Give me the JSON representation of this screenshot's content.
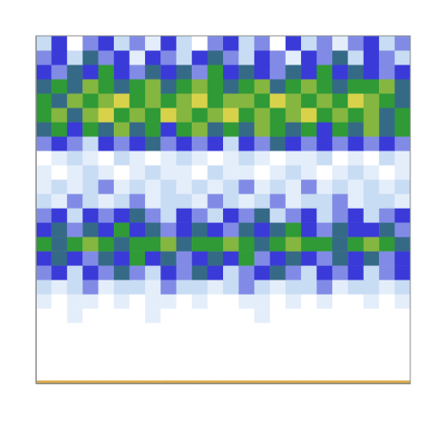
{
  "chart_data": {
    "type": "heatmap",
    "xlim": [
      0,
      24
    ],
    "ylim": [
      0,
      100
    ],
    "zlim": [
      0,
      10
    ],
    "tick_labels": false,
    "x_bins": [
      0,
      1,
      2,
      3,
      4,
      5,
      6,
      7,
      8,
      9,
      10,
      11,
      12,
      13,
      14,
      15,
      16,
      17,
      18,
      19,
      20,
      21,
      22,
      23,
      24
    ],
    "y_bins": [
      0,
      1,
      5.125,
      9.25,
      13.375,
      17.5,
      21.625,
      25.75,
      29.875,
      34,
      38.125,
      42.25,
      46.375,
      50.5,
      54.625,
      58.75,
      62.875,
      67,
      71.125,
      75.25,
      79.375,
      83.5,
      87.625,
      91.75,
      95.875,
      100
    ],
    "cells": [
      [
        9,
        9,
        9,
        9,
        9,
        9,
        9,
        9,
        9,
        9,
        9,
        9,
        9,
        9,
        9,
        9,
        9,
        9,
        9,
        9,
        9,
        9,
        9,
        9
      ],
      [
        0,
        0,
        0,
        0,
        0,
        0,
        0,
        0,
        0,
        0,
        0,
        0,
        0,
        0,
        0,
        0,
        0,
        0,
        0,
        0,
        0,
        0,
        0,
        0
      ],
      [
        0,
        0,
        0,
        0,
        0,
        0,
        0,
        0,
        0,
        0,
        0,
        0,
        0,
        0,
        0,
        0,
        0,
        0,
        0,
        0,
        0,
        0,
        0,
        0
      ],
      [
        0,
        0,
        0,
        0,
        0,
        0,
        0,
        0,
        0,
        0,
        0,
        0,
        0,
        0,
        0,
        0,
        0,
        0,
        0,
        0,
        0,
        0,
        0,
        0
      ],
      [
        0,
        0,
        0,
        0,
        0,
        0,
        0,
        0,
        0,
        0,
        0,
        0,
        0,
        0,
        0,
        0,
        0,
        0,
        0,
        0,
        0,
        0,
        0,
        0
      ],
      [
        0,
        0,
        1,
        0,
        0,
        0,
        0,
        1,
        0,
        0,
        0,
        0,
        0,
        0,
        1,
        0,
        0,
        0,
        0,
        0,
        0,
        0,
        0,
        0
      ],
      [
        1,
        0,
        1,
        1,
        0,
        1,
        0,
        1,
        1,
        0,
        1,
        0,
        0,
        1,
        1,
        0,
        1,
        0,
        1,
        0,
        0,
        1,
        0,
        1
      ],
      [
        2,
        1,
        2,
        3,
        1,
        2,
        2,
        1,
        3,
        2,
        2,
        1,
        2,
        3,
        2,
        1,
        2,
        2,
        3,
        1,
        2,
        2,
        1,
        2
      ],
      [
        3,
        4,
        2,
        4,
        3,
        5,
        3,
        2,
        4,
        3,
        5,
        4,
        2,
        3,
        4,
        5,
        3,
        2,
        4,
        3,
        4,
        2,
        3,
        4
      ],
      [
        4,
        5,
        4,
        3,
        5,
        4,
        6,
        4,
        5,
        3,
        4,
        5,
        4,
        6,
        3,
        4,
        5,
        4,
        3,
        5,
        4,
        5,
        3,
        4
      ],
      [
        6,
        5,
        6,
        7,
        6,
        5,
        6,
        6,
        7,
        5,
        6,
        6,
        7,
        6,
        5,
        6,
        7,
        6,
        6,
        5,
        6,
        7,
        6,
        5
      ],
      [
        4,
        5,
        3,
        5,
        4,
        6,
        4,
        5,
        3,
        4,
        5,
        4,
        3,
        5,
        4,
        5,
        6,
        4,
        3,
        5,
        4,
        4,
        5,
        3
      ],
      [
        3,
        4,
        2,
        4,
        3,
        4,
        5,
        3,
        2,
        4,
        3,
        2,
        4,
        3,
        5,
        2,
        3,
        4,
        2,
        3,
        4,
        2,
        3,
        4
      ],
      [
        2,
        1,
        3,
        2,
        1,
        2,
        3,
        1,
        2,
        2,
        1,
        3,
        2,
        1,
        2,
        3,
        1,
        2,
        2,
        3,
        1,
        2,
        2,
        1
      ],
      [
        1,
        2,
        1,
        2,
        3,
        1,
        2,
        1,
        2,
        1,
        2,
        1,
        2,
        3,
        1,
        2,
        1,
        3,
        1,
        2,
        1,
        2,
        1,
        2
      ],
      [
        1,
        0,
        1,
        2,
        1,
        0,
        1,
        2,
        1,
        1,
        0,
        2,
        1,
        1,
        0,
        1,
        2,
        1,
        0,
        1,
        2,
        1,
        0,
        1
      ],
      [
        0,
        1,
        2,
        1,
        0,
        2,
        1,
        0,
        1,
        2,
        1,
        0,
        1,
        2,
        1,
        0,
        1,
        1,
        2,
        0,
        1,
        0,
        2,
        1
      ],
      [
        3,
        4,
        3,
        2,
        4,
        3,
        4,
        5,
        3,
        4,
        3,
        4,
        2,
        4,
        3,
        5,
        4,
        3,
        4,
        3,
        4,
        3,
        4,
        3
      ],
      [
        5,
        6,
        4,
        6,
        5,
        7,
        5,
        6,
        4,
        6,
        7,
        5,
        6,
        5,
        7,
        6,
        5,
        6,
        4,
        6,
        5,
        7,
        5,
        6
      ],
      [
        6,
        7,
        5,
        7,
        8,
        6,
        7,
        6,
        8,
        7,
        6,
        7,
        8,
        6,
        7,
        6,
        7,
        8,
        6,
        7,
        6,
        7,
        5,
        6
      ],
      [
        6,
        5,
        7,
        6,
        7,
        8,
        6,
        7,
        6,
        7,
        8,
        6,
        7,
        7,
        6,
        8,
        7,
        6,
        7,
        6,
        8,
        7,
        6,
        5
      ],
      [
        5,
        6,
        5,
        7,
        6,
        5,
        6,
        7,
        5,
        6,
        7,
        6,
        5,
        6,
        7,
        5,
        6,
        7,
        6,
        5,
        6,
        6,
        7,
        5
      ],
      [
        4,
        3,
        5,
        4,
        6,
        4,
        3,
        5,
        4,
        5,
        3,
        6,
        4,
        5,
        4,
        3,
        5,
        4,
        6,
        4,
        5,
        4,
        3,
        4
      ],
      [
        3,
        4,
        2,
        5,
        3,
        4,
        1,
        4,
        3,
        2,
        4,
        5,
        3,
        2,
        4,
        3,
        1,
        4,
        3,
        5,
        2,
        4,
        3,
        2
      ],
      [
        2,
        4,
        0,
        3,
        4,
        2,
        3,
        1,
        4,
        2,
        0,
        3,
        4,
        2,
        3,
        0,
        4,
        2,
        3,
        1,
        3,
        4,
        2,
        3
      ]
    ]
  }
}
